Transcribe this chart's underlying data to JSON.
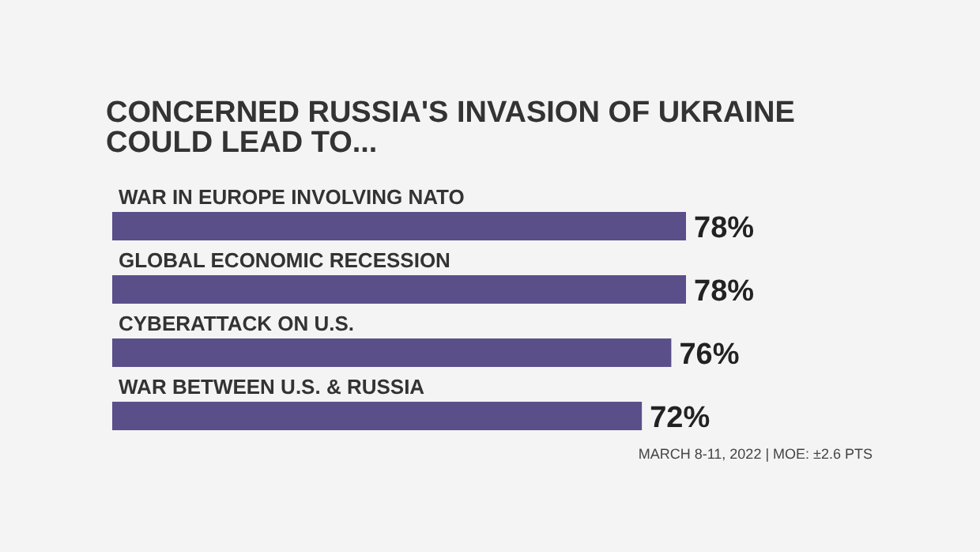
{
  "chart_data": {
    "type": "bar",
    "orientation": "horizontal",
    "title": "CONCERNED RUSSIA'S INVASION OF UKRAINE COULD LEAD TO...",
    "categories": [
      "WAR IN EUROPE INVOLVING NATO",
      "GLOBAL ECONOMIC RECESSION",
      "CYBERATTACK ON U.S.",
      "WAR BETWEEN U.S. & RUSSIA"
    ],
    "values": [
      78,
      78,
      76,
      72
    ],
    "value_labels": [
      "78%",
      "78%",
      "76%",
      "72%"
    ],
    "color": "#5b4f8a",
    "annotations": [
      "MARCH 8-11, 2022 | MOE: ±2.6 PTS"
    ]
  }
}
